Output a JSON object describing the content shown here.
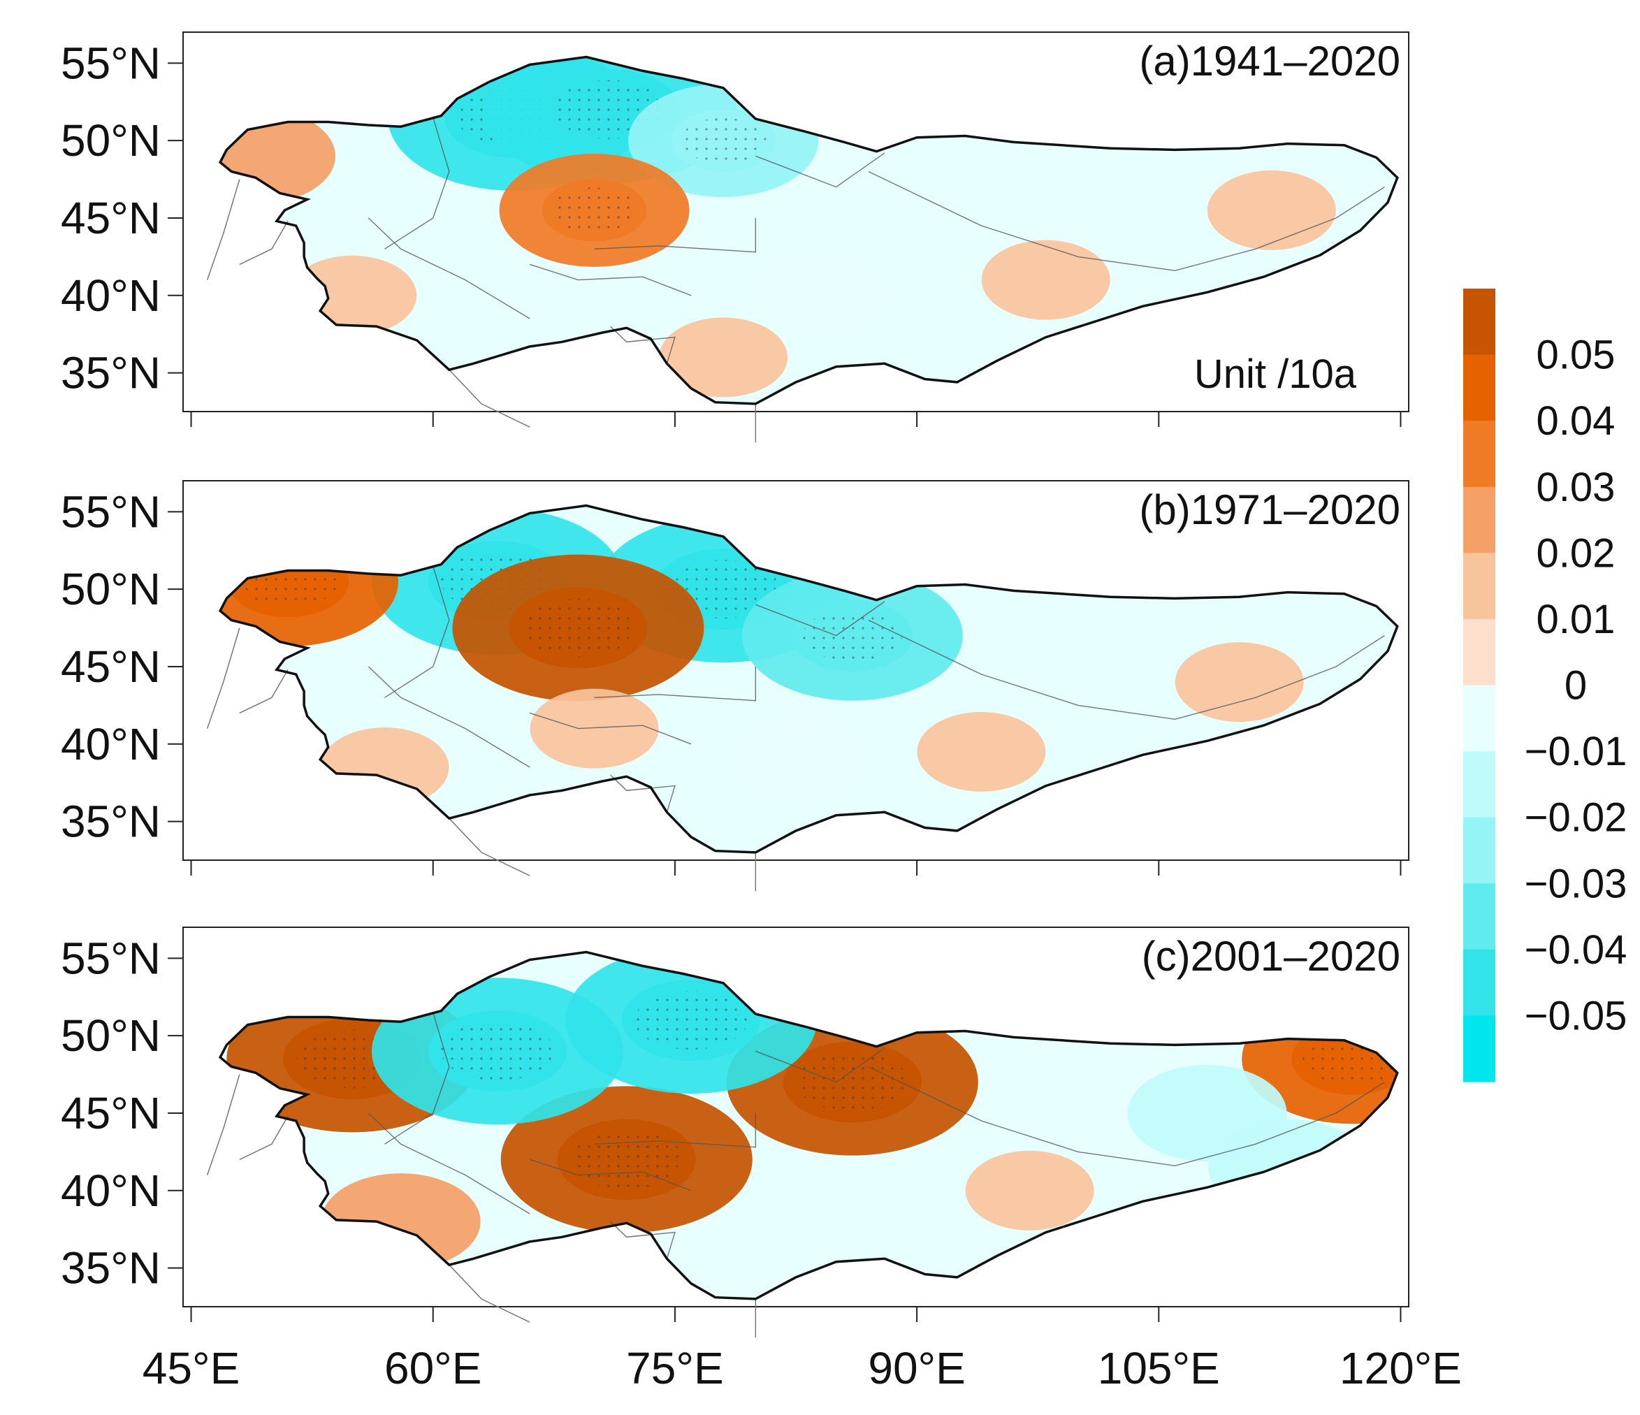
{
  "figure": {
    "lat_ticks": [
      "55°N",
      "50°N",
      "45°N",
      "40°N",
      "35°N"
    ],
    "lon_ticks": [
      "45°E",
      "60°E",
      "75°E",
      "90°E",
      "105°E",
      "120°E"
    ],
    "panels": [
      {
        "title": "(a)1941–2020",
        "unit": "Unit /10a"
      },
      {
        "title": "(b)1971–2020",
        "unit": ""
      },
      {
        "title": "(c)2001–2020",
        "unit": ""
      }
    ],
    "colorbar": {
      "labels": [
        "0.05",
        "0.04",
        "0.03",
        "0.02",
        "0.01",
        "0",
        "−0.01",
        "−0.02",
        "−0.03",
        "−0.04",
        "−0.05"
      ],
      "colors": [
        "#c65400",
        "#e66200",
        "#f07b26",
        "#f4a066",
        "#f8c49c",
        "#fde0cc",
        "#e8ffff",
        "#c0fbfb",
        "#94f4f6",
        "#60ecef",
        "#30e4ea",
        "#00e6ef"
      ]
    }
  },
  "chart_data": {
    "type": "map",
    "variable_unit": "Unit /10a",
    "lat_range": [
      "35°N",
      "55°N"
    ],
    "lon_range": [
      "45°E",
      "120°E"
    ],
    "color_scale": [
      -0.05,
      -0.04,
      -0.03,
      -0.02,
      -0.01,
      0,
      0.01,
      0.02,
      0.03,
      0.04,
      0.05
    ],
    "panels": [
      {
        "period": "1941–2020",
        "patches": [
          {
            "lon": 65,
            "lat": 51.5,
            "value": -0.05
          },
          {
            "lon": 71,
            "lat": 52,
            "value": -0.05
          },
          {
            "lon": 78,
            "lat": 50,
            "value": -0.03
          },
          {
            "lon": 70,
            "lat": 45.5,
            "value": 0.03
          },
          {
            "lon": 49,
            "lat": 49,
            "value": 0.02
          },
          {
            "lon": 55,
            "lat": 40,
            "value": 0.01
          },
          {
            "lon": 84,
            "lat": 40,
            "value": -0.01
          },
          {
            "lon": 98,
            "lat": 41,
            "value": 0.01
          },
          {
            "lon": 112,
            "lat": 45.5,
            "value": 0.01
          },
          {
            "lon": 78,
            "lat": 36,
            "value": 0.01
          }
        ]
      },
      {
        "period": "1971–2020",
        "patches": [
          {
            "lon": 64,
            "lat": 50.5,
            "value": -0.05
          },
          {
            "lon": 78,
            "lat": 50,
            "value": -0.05
          },
          {
            "lon": 86,
            "lat": 47,
            "value": -0.04
          },
          {
            "lon": 69,
            "lat": 47.5,
            "value": 0.05
          },
          {
            "lon": 51,
            "lat": 50.5,
            "value": 0.04
          },
          {
            "lon": 57,
            "lat": 38.5,
            "value": 0.01
          },
          {
            "lon": 70,
            "lat": 41,
            "value": 0.01
          },
          {
            "lon": 94,
            "lat": 39.5,
            "value": 0.01
          },
          {
            "lon": 110,
            "lat": 44,
            "value": 0.01
          },
          {
            "lon": 83,
            "lat": 39,
            "value": -0.01
          }
        ]
      },
      {
        "period": "2001–2020",
        "patches": [
          {
            "lon": 55,
            "lat": 48.5,
            "value": 0.05
          },
          {
            "lon": 72,
            "lat": 42,
            "value": 0.05
          },
          {
            "lon": 86,
            "lat": 47,
            "value": 0.05
          },
          {
            "lon": 117,
            "lat": 48.5,
            "value": 0.04
          },
          {
            "lon": 76,
            "lat": 51,
            "value": -0.05
          },
          {
            "lon": 64,
            "lat": 49,
            "value": -0.05
          },
          {
            "lon": 108,
            "lat": 45,
            "value": -0.02
          },
          {
            "lon": 113,
            "lat": 41.5,
            "value": -0.02
          },
          {
            "lon": 97,
            "lat": 40,
            "value": 0.01
          },
          {
            "lon": 58,
            "lat": 38,
            "value": 0.02
          }
        ]
      }
    ]
  }
}
